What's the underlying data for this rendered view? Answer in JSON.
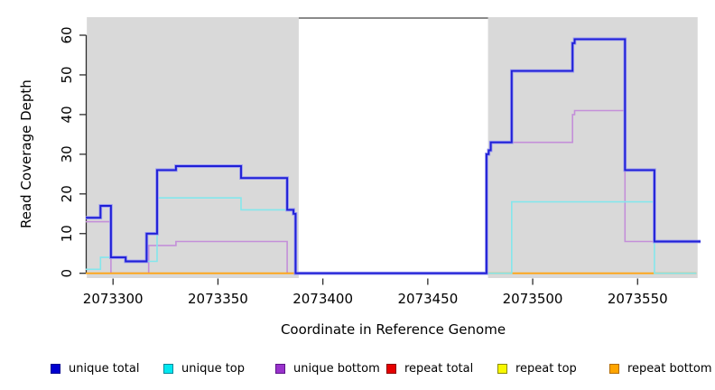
{
  "figure": {
    "xlabel": "Coordinate in Reference Genome",
    "ylabel": "Read Coverage Depth"
  },
  "chart_data": {
    "type": "line",
    "subtype": "step-after",
    "title": "",
    "xlabel": "Coordinate in Reference Genome",
    "ylabel": "Read Coverage Depth",
    "xlim": [
      2073287,
      2073580
    ],
    "ylim": [
      0,
      64.5
    ],
    "x_ticks": [
      2073300,
      2073350,
      2073400,
      2073450,
      2073500,
      2073550
    ],
    "y_ticks": [
      0,
      10,
      20,
      30,
      40,
      50,
      60
    ],
    "grid": false,
    "background_color": "#ffffff",
    "region_color": "#d9d9d9",
    "highlight_regions": [
      {
        "name": "left-shaded-region",
        "start": 2073287.5,
        "end": 2073388.5
      },
      {
        "name": "right-shaded-region",
        "start": 2073478.7,
        "end": 2073578.6
      }
    ],
    "gap_connector_line": {
      "start": 2073388.5,
      "end": 2073478.7,
      "color": "#8a8a8a"
    },
    "series": [
      {
        "name": "repeat total",
        "color": "#e00000",
        "width": 1.5,
        "points": [
          [
            2073287,
            0
          ]
        ],
        "end": 2073578
      },
      {
        "name": "repeat top",
        "color": "#f5f500",
        "width": 1.5,
        "points": [
          [
            2073287,
            0
          ]
        ],
        "end": 2073578
      },
      {
        "name": "unique bottom",
        "color": "#c48fd9",
        "width": 1.6,
        "points": [
          [
            2073287,
            13
          ],
          [
            2073299,
            0
          ],
          [
            2073317,
            7
          ],
          [
            2073330,
            8
          ],
          [
            2073383,
            0
          ],
          [
            2073478,
            30
          ],
          [
            2073479,
            31
          ],
          [
            2073480,
            33
          ],
          [
            2073519,
            40
          ],
          [
            2073520,
            41
          ],
          [
            2073544,
            8
          ]
        ],
        "end": 2073580
      },
      {
        "name": "repeat bottom",
        "color": "#ffa414",
        "width": 1.9,
        "points": [
          [
            2073287,
            0
          ]
        ],
        "end": 2073578
      },
      {
        "name": "unique top",
        "color": "#84e6ec",
        "width": 1.6,
        "points": [
          [
            2073287,
            1
          ],
          [
            2073294,
            4
          ],
          [
            2073306,
            3
          ],
          [
            2073321,
            19
          ],
          [
            2073361,
            16
          ],
          [
            2073386,
            15
          ],
          [
            2073387,
            0
          ],
          [
            2073490,
            18
          ],
          [
            2073558,
            0
          ]
        ],
        "end": 2073578
      },
      {
        "name": "unique total",
        "color": "#1f1fd6",
        "halo": "#9a9af0",
        "width": 1.9,
        "points": [
          [
            2073287,
            14
          ],
          [
            2073294,
            17
          ],
          [
            2073299,
            4
          ],
          [
            2073306,
            3
          ],
          [
            2073316,
            10
          ],
          [
            2073321,
            26
          ],
          [
            2073330,
            27
          ],
          [
            2073361,
            24
          ],
          [
            2073383,
            16
          ],
          [
            2073386,
            15
          ],
          [
            2073387,
            0
          ],
          [
            2073478,
            30
          ],
          [
            2073479,
            31
          ],
          [
            2073480,
            33
          ],
          [
            2073490,
            51
          ],
          [
            2073519,
            58
          ],
          [
            2073520,
            59
          ],
          [
            2073544,
            26
          ],
          [
            2073558,
            8
          ]
        ],
        "end": 2073580
      }
    ],
    "legend": {
      "position": "bottom",
      "items": [
        {
          "label": "unique total",
          "fill": "#0000d0",
          "border": "#000090"
        },
        {
          "label": "unique top",
          "fill": "#00e8f0",
          "border": "#00889b"
        },
        {
          "label": "unique bottom",
          "fill": "#9932cc",
          "border": "#5e1489"
        },
        {
          "label": "repeat total",
          "fill": "#e60000",
          "border": "#8b0000"
        },
        {
          "label": "repeat top",
          "fill": "#f8f800",
          "border": "#8b8b00"
        },
        {
          "label": "repeat bottom",
          "fill": "#ffa500",
          "border": "#b36b00"
        }
      ]
    }
  }
}
